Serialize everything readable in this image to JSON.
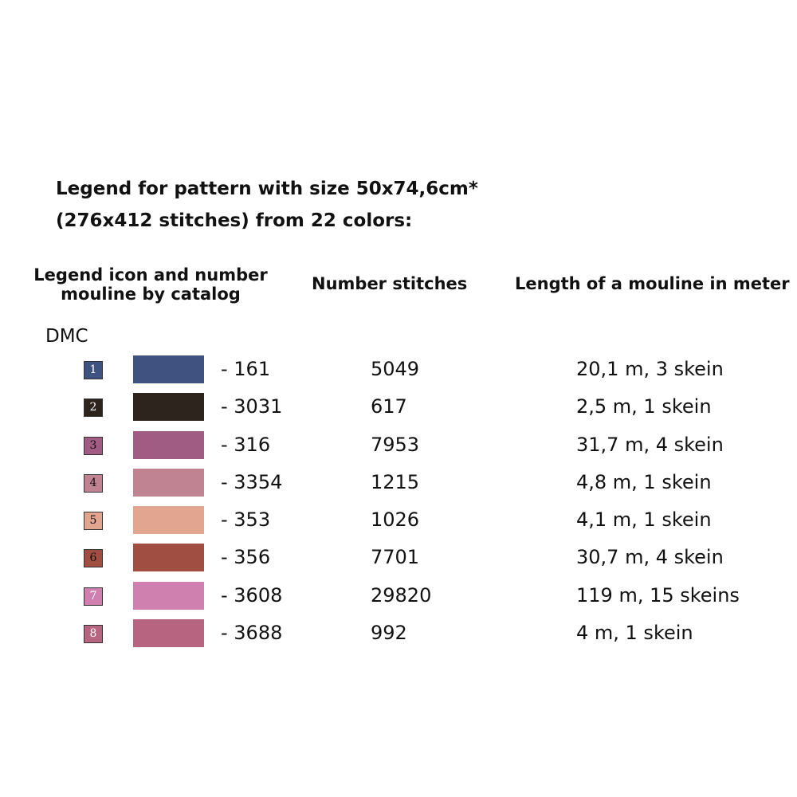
{
  "title": {
    "line1": "Legend for pattern with size 50x74,6cm*",
    "line2": "(276x412 stitches) from 22 colors:"
  },
  "headers": {
    "icon_line1": "Legend icon and number",
    "icon_line2": "mouline by catalog",
    "stitches": "Number stitches",
    "length": "Length of a mouline in meter"
  },
  "brand": "DMC",
  "rows": [
    {
      "num": "1",
      "code": "- 161",
      "stitches": "5049",
      "length": "20,1 m, 3 skein",
      "color": "#3f5280",
      "text_color": "#ffffff"
    },
    {
      "num": "2",
      "code": "- 3031",
      "stitches": "617",
      "length": "2,5 m, 1 skein",
      "color": "#2d241e",
      "text_color": "#ffffff"
    },
    {
      "num": "3",
      "code": "- 316",
      "stitches": "7953",
      "length": "31,7 m, 4 skein",
      "color": "#a05c82",
      "text_color": "#111111"
    },
    {
      "num": "4",
      "code": "- 3354",
      "stitches": "1215",
      "length": "4,8 m, 1 skein",
      "color": "#c08391",
      "text_color": "#111111"
    },
    {
      "num": "5",
      "code": "- 353",
      "stitches": "1026",
      "length": "4,1 m, 1 skein",
      "color": "#e2a590",
      "text_color": "#111111"
    },
    {
      "num": "6",
      "code": "- 356",
      "stitches": "7701",
      "length": "30,7 m, 4 skein",
      "color": "#a04d42",
      "text_color": "#111111"
    },
    {
      "num": "7",
      "code": "- 3608",
      "stitches": "29820",
      "length": "119 m, 15 skeins",
      "color": "#cf80ae",
      "text_color": "#ffffff"
    },
    {
      "num": "8",
      "code": "- 3688",
      "stitches": "992",
      "length": "4 m, 1 skein",
      "color": "#b6647f",
      "text_color": "#ffffff"
    }
  ]
}
